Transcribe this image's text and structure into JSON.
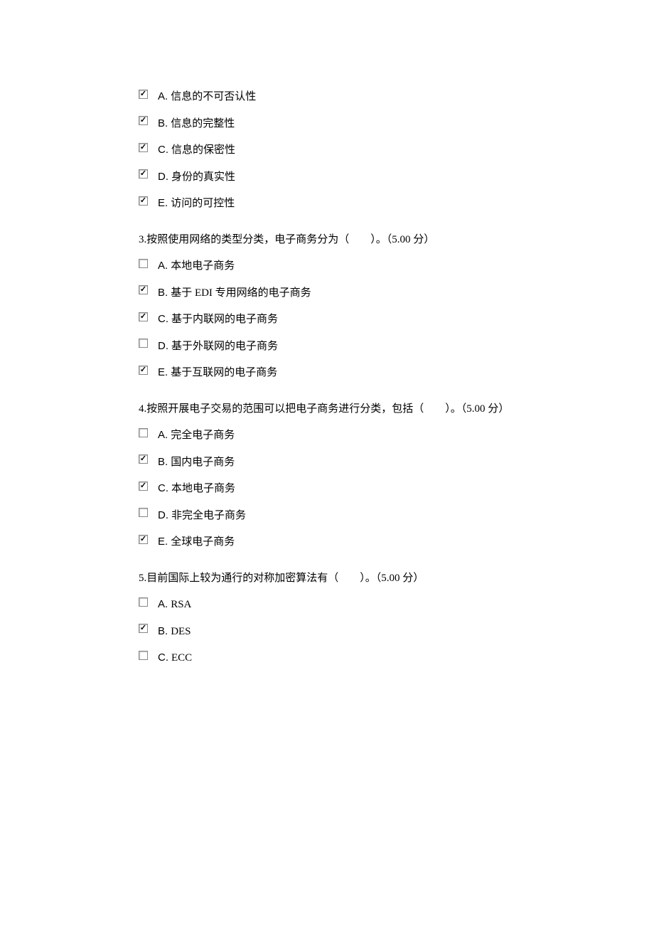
{
  "blocks": [
    {
      "question": null,
      "options": [
        {
          "letter": "A.",
          "text": "信息的不可否认性",
          "checked": true
        },
        {
          "letter": "B.",
          "text": "信息的完整性",
          "checked": true
        },
        {
          "letter": "C.",
          "text": "信息的保密性",
          "checked": true
        },
        {
          "letter": "D.",
          "text": "身份的真实性",
          "checked": true
        },
        {
          "letter": "E.",
          "text": "访问的可控性",
          "checked": true
        }
      ]
    },
    {
      "question": "3.按照使用网络的类型分类，电子商务分为（　　）。（5.00 分）",
      "options": [
        {
          "letter": "A.",
          "text": "本地电子商务",
          "checked": false
        },
        {
          "letter": "B.",
          "text": "基于 EDI 专用网络的电子商务",
          "checked": true
        },
        {
          "letter": "C.",
          "text": "基于内联网的电子商务",
          "checked": true
        },
        {
          "letter": "D.",
          "text": "基于外联网的电子商务",
          "checked": false
        },
        {
          "letter": "E.",
          "text": "基于互联网的电子商务",
          "checked": true
        }
      ]
    },
    {
      "question": "4.按照开展电子交易的范围可以把电子商务进行分类，包括（　　）。（5.00 分）",
      "options": [
        {
          "letter": "A.",
          "text": "完全电子商务",
          "checked": false
        },
        {
          "letter": "B.",
          "text": "国内电子商务",
          "checked": true
        },
        {
          "letter": "C.",
          "text": "本地电子商务",
          "checked": true
        },
        {
          "letter": "D.",
          "text": "非完全电子商务",
          "checked": false
        },
        {
          "letter": "E.",
          "text": "全球电子商务",
          "checked": true
        }
      ]
    },
    {
      "question": "5.目前国际上较为通行的对称加密算法有（　　）。（5.00 分）",
      "options": [
        {
          "letter": "A.",
          "text": "RSA",
          "checked": false
        },
        {
          "letter": "B.",
          "text": "DES",
          "checked": true
        },
        {
          "letter": "C.",
          "text": "ECC",
          "checked": false
        }
      ]
    }
  ]
}
